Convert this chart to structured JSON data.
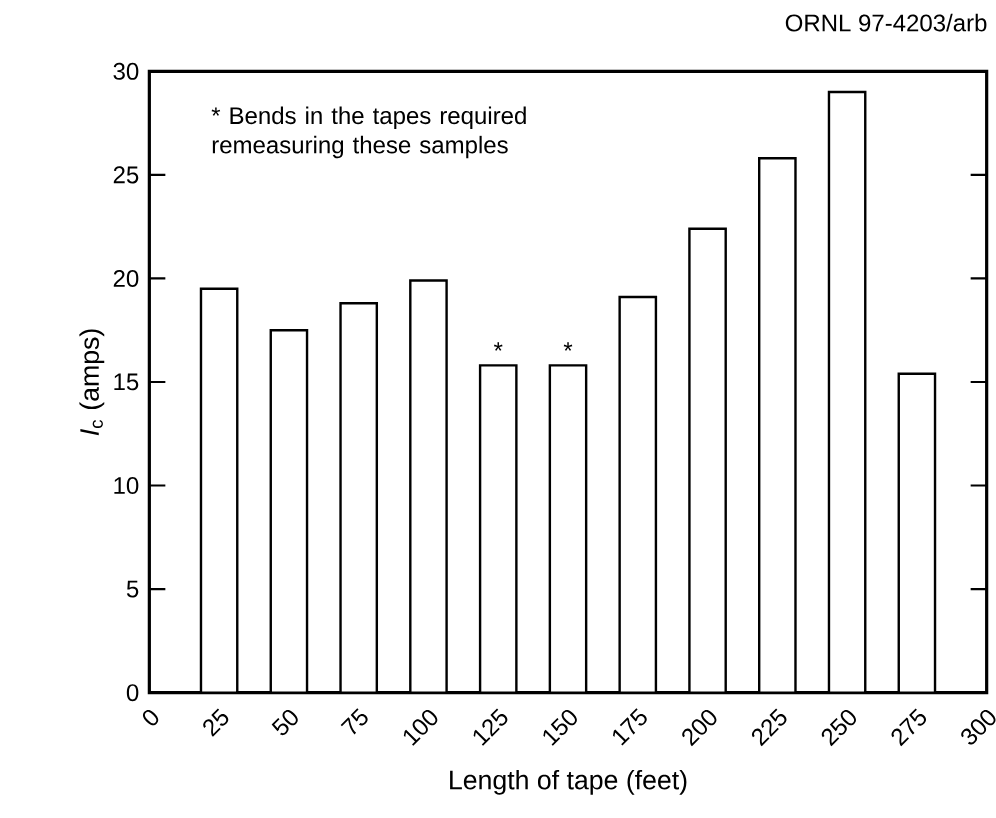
{
  "chart_data": {
    "type": "bar",
    "xlabel": "Length of tape (feet)",
    "ylabel": "*I*$_{c}$ (amps)",
    "x": [
      25,
      50,
      75,
      100,
      125,
      150,
      175,
      200,
      225,
      250,
      275
    ],
    "values": [
      19.5,
      17.5,
      18.8,
      19.9,
      15.8,
      15.8,
      19.1,
      22.4,
      25.8,
      29.0,
      15.4
    ],
    "color": "#000000",
    "xlim": [
      0,
      300
    ],
    "xticks": [
      0,
      25,
      50,
      75,
      100,
      125,
      150,
      175,
      200,
      225,
      250,
      275,
      300
    ],
    "ylim": [
      0,
      30
    ],
    "yticks": [
      0,
      5,
      10,
      15,
      20,
      25,
      30
    ],
    "annotations": [
      "ORNL 97-4203/arb",
      "* Bends in the tapes required remeasuring these samples",
      {
        "text": "*",
        "x": 125,
        "y": 15.8
      },
      {
        "text": "*",
        "x": 150,
        "y": 15.8
      }
    ]
  }
}
